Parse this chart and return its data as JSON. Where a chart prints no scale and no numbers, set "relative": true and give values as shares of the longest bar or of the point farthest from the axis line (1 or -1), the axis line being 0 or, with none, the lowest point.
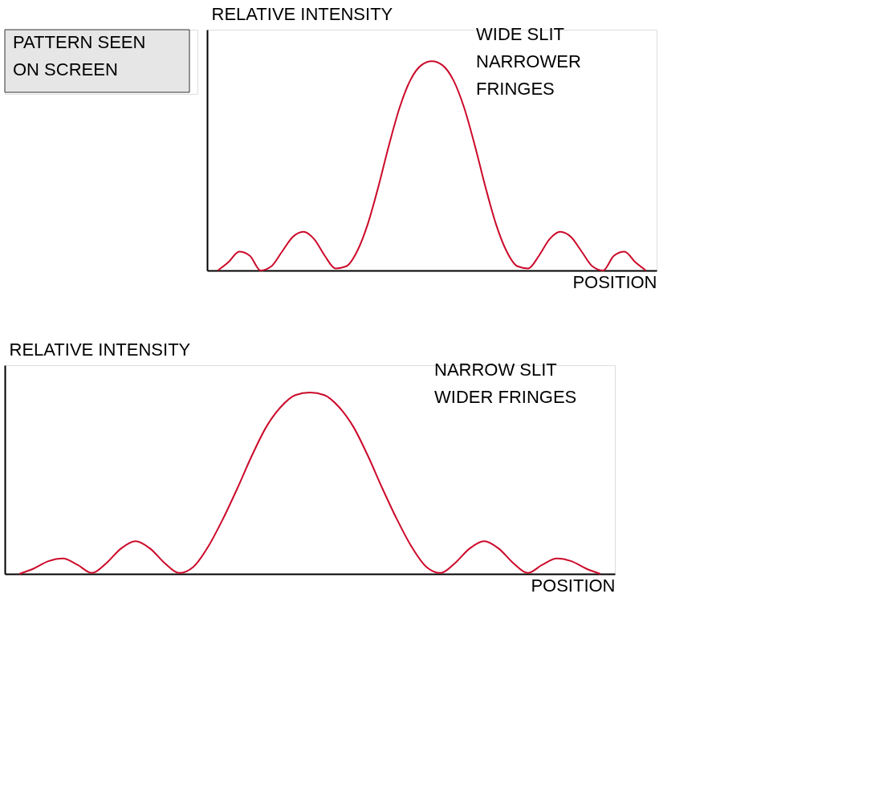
{
  "chart_data": [
    {
      "type": "line",
      "relative": true,
      "ylabel": "RELATIVE INTENSITY",
      "xlabel": "POSITION",
      "grid": false,
      "marker": "none",
      "line_style": "solid",
      "tick_labels": false,
      "categories": [
        null,
        null,
        null,
        null,
        null,
        null,
        null,
        null,
        null,
        null,
        null,
        null,
        null,
        null,
        null,
        null,
        null,
        null,
        null,
        null,
        null,
        null,
        null,
        null,
        null,
        null,
        null,
        null,
        null,
        null,
        null,
        null,
        null,
        null,
        null,
        null,
        null,
        null,
        null,
        null,
        null
      ],
      "annotations": [
        "WIDE SLIT",
        "NARROWER",
        "FRINGES",
        "PATTERN SEEN",
        "ON SCREEN"
      ],
      "series": [
        {
          "color": "#cc0a2a",
          "values": [
            0,
            0.04,
            0.09,
            0.07,
            0.0,
            0.02,
            0.09,
            0.16,
            0.185,
            0.15,
            0.07,
            0.01,
            0.02,
            0.09,
            0.22,
            0.4,
            0.6,
            0.78,
            0.91,
            0.98,
            1.0,
            0.98,
            0.91,
            0.78,
            0.6,
            0.4,
            0.22,
            0.09,
            0.02,
            0.01,
            0.07,
            0.15,
            0.185,
            0.16,
            0.09,
            0.02,
            0.0,
            0.07,
            0.09,
            0.04,
            0
          ]
        }
      ]
    },
    {
      "type": "line",
      "relative": true,
      "ylabel": "RELATIVE INTENSITY",
      "xlabel": "POSITION",
      "grid": false,
      "marker": "none",
      "line_style": "solid",
      "tick_labels": false,
      "categories": [
        null,
        null,
        null,
        null,
        null,
        null,
        null,
        null,
        null,
        null,
        null,
        null,
        null,
        null,
        null,
        null,
        null,
        null,
        null,
        null,
        null,
        null,
        null,
        null,
        null,
        null,
        null,
        null,
        null,
        null,
        null,
        null,
        null,
        null,
        null,
        null,
        null,
        null,
        null,
        null,
        null
      ],
      "annotations": [
        "NARROW SLIT",
        "WIDER FRINGES"
      ],
      "series": [
        {
          "color": "#cc0a2a",
          "values": [
            0,
            0.03,
            0.07,
            0.085,
            0.05,
            0.005,
            0.06,
            0.14,
            0.18,
            0.14,
            0.06,
            0.005,
            0.04,
            0.15,
            0.3,
            0.47,
            0.65,
            0.81,
            0.92,
            0.985,
            1.0,
            0.985,
            0.92,
            0.81,
            0.65,
            0.47,
            0.3,
            0.15,
            0.04,
            0.005,
            0.06,
            0.14,
            0.18,
            0.14,
            0.06,
            0.005,
            0.05,
            0.085,
            0.07,
            0.03,
            0
          ]
        }
      ]
    }
  ]
}
